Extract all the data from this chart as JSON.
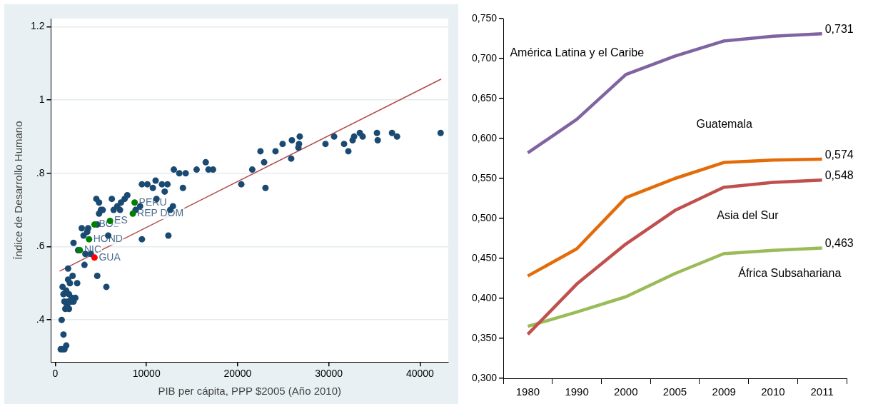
{
  "chart_data": [
    {
      "type": "scatter",
      "xlabel": "PIB per cápita, PPP $2005 (Año 2010)",
      "ylabel": "Índice de Desarrollo Humano",
      "xlim": [
        -470,
        43100
      ],
      "ylim": [
        0.285,
        1.222
      ],
      "xticks": [
        0,
        10000,
        20000,
        30000,
        40000
      ],
      "yticks": [
        {
          "value": 0.4,
          "label": ".4"
        },
        {
          "value": 0.6,
          "label": ".6"
        },
        {
          "value": 0.8,
          "label": ".8"
        },
        {
          "value": 1,
          "label": "1"
        },
        {
          "value": 1.2,
          "label": "1.2"
        }
      ],
      "grid": "y",
      "legend": false,
      "marker": "circle",
      "series": [
        {
          "color": "#1a4a72",
          "x": [
            600,
            800,
            1000,
            1200,
            900,
            700,
            1100,
            1500,
            1300,
            1000,
            1400,
            1700,
            2000,
            1800,
            2200,
            900,
            1500,
            1200,
            800,
            1600,
            2400,
            1400,
            1900,
            1400,
            4600,
            5600,
            3200,
            3300,
            2500,
            3900,
            2000,
            3100,
            5800,
            3500,
            2900,
            3600,
            4600,
            4800,
            5200,
            6800,
            4500,
            4800,
            6200,
            7600,
            7200,
            7900,
            5000,
            6400,
            7100,
            8800,
            9300,
            9500,
            9500,
            10100,
            11000,
            10700,
            11700,
            12300,
            12000,
            12400,
            11100,
            12600,
            12900,
            13000,
            13600,
            14300,
            14000,
            15500,
            16500,
            16800,
            17300,
            20400,
            21600,
            22500,
            22900,
            23050,
            24150,
            24930,
            25950,
            25870,
            26660,
            26810,
            26730,
            29630,
            30580,
            31670,
            32140,
            32610,
            32770,
            33400,
            33710,
            35280,
            35360,
            36930,
            37480,
            42260
          ],
          "values": [
            0.32,
            0.32,
            0.32,
            0.33,
            0.36,
            0.4,
            0.43,
            0.43,
            0.44,
            0.45,
            0.45,
            0.45,
            0.45,
            0.46,
            0.46,
            0.47,
            0.47,
            0.48,
            0.49,
            0.5,
            0.5,
            0.51,
            0.52,
            0.54,
            0.52,
            0.49,
            0.55,
            0.58,
            0.59,
            0.58,
            0.61,
            0.63,
            0.63,
            0.64,
            0.65,
            0.65,
            0.66,
            0.69,
            0.7,
            0.71,
            0.73,
            0.72,
            0.73,
            0.73,
            0.72,
            0.74,
            0.7,
            0.7,
            0.7,
            0.7,
            0.71,
            0.62,
            0.77,
            0.77,
            0.78,
            0.76,
            0.77,
            0.77,
            0.75,
            0.63,
            0.73,
            0.7,
            0.71,
            0.81,
            0.8,
            0.8,
            0.76,
            0.81,
            0.83,
            0.81,
            0.81,
            0.77,
            0.81,
            0.86,
            0.83,
            0.76,
            0.86,
            0.88,
            0.89,
            0.84,
            0.87,
            0.9,
            0.88,
            0.88,
            0.9,
            0.88,
            0.86,
            0.89,
            0.9,
            0.91,
            0.9,
            0.91,
            0.89,
            0.91,
            0.9,
            0.91
          ]
        },
        {
          "color": "#008000",
          "x": [
            4300,
            6000,
            3700,
            2700,
            8700,
            8500
          ],
          "values": [
            0.66,
            0.67,
            0.62,
            0.59,
            0.72,
            0.69
          ]
        },
        {
          "color": "#ff0000",
          "x": [
            4300
          ],
          "values": [
            0.57
          ]
        },
        {
          "type": "line",
          "marker": "none",
          "color": "#b5474b",
          "x": [
            470,
            42320
          ],
          "values": [
            0.533,
            1.057
          ]
        }
      ],
      "annotations": [
        {
          "text": "BOL",
          "x": 4300,
          "y": 0.66
        },
        {
          "text": "ES",
          "x": 6000,
          "y": 0.67
        },
        {
          "text": "HOND",
          "x": 3700,
          "y": 0.62
        },
        {
          "text": "NIC",
          "x": 2700,
          "y": 0.59
        },
        {
          "text": "PERU",
          "x": 8700,
          "y": 0.72
        },
        {
          "text": "REP DOM",
          "x": 8500,
          "y": 0.69
        },
        {
          "text": "GUA",
          "x": 4300,
          "y": 0.57
        }
      ]
    },
    {
      "type": "line",
      "categories": [
        "1980",
        "1990",
        "2000",
        "2005",
        "2009",
        "2010",
        "2011"
      ],
      "ylim": [
        0.3,
        0.75
      ],
      "yticks": [
        {
          "value": 0.3,
          "label": "0,300"
        },
        {
          "value": 0.35,
          "label": "0,350"
        },
        {
          "value": 0.4,
          "label": "0,400"
        },
        {
          "value": 0.45,
          "label": "0,450"
        },
        {
          "value": 0.5,
          "label": "0,500"
        },
        {
          "value": 0.55,
          "label": "0,550"
        },
        {
          "value": 0.6,
          "label": "0,600"
        },
        {
          "value": 0.65,
          "label": "0,650"
        },
        {
          "value": 0.7,
          "label": "0,700"
        },
        {
          "value": 0.75,
          "label": "0,750"
        }
      ],
      "grid": false,
      "legend": false,
      "marker": "none",
      "series": [
        {
          "name": "América Latina y el Caribe",
          "color": "#8064a2",
          "values": [
            0.582,
            0.624,
            0.68,
            0.703,
            0.722,
            0.728,
            0.731
          ],
          "value_labels": [
            null,
            null,
            null,
            null,
            null,
            null,
            "0,731"
          ]
        },
        {
          "name": "Guatemala",
          "color": "#e36c09",
          "values": [
            0.428,
            0.462,
            0.526,
            0.55,
            0.57,
            0.573,
            0.574
          ],
          "value_labels": [
            null,
            null,
            null,
            null,
            null,
            null,
            "0,574"
          ]
        },
        {
          "name": "Asia del Sur",
          "color": "#c0504d",
          "values": [
            0.355,
            0.418,
            0.468,
            0.51,
            0.539,
            0.545,
            0.548
          ],
          "value_labels": [
            null,
            null,
            null,
            null,
            null,
            null,
            "0,548"
          ]
        },
        {
          "name": "África Subsahariana",
          "color": "#9bbb59",
          "values": [
            0.365,
            0.383,
            0.402,
            0.431,
            0.456,
            0.46,
            0.463
          ],
          "value_labels": [
            null,
            null,
            null,
            null,
            null,
            null,
            "0,463"
          ]
        }
      ]
    }
  ]
}
